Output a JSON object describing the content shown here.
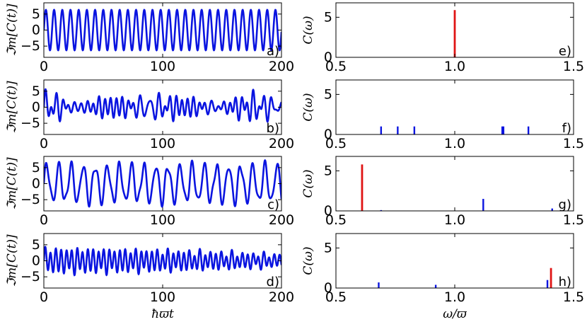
{
  "chart_data": [
    {
      "panel": "a)",
      "type": "line",
      "ylabel": "ℑm[C(t)]",
      "xlabel": "",
      "xlim": [
        0,
        200
      ],
      "ylim": [
        -8.5,
        8.5
      ],
      "xticks": [
        0,
        100,
        200
      ],
      "yticks": [
        -5,
        0,
        5
      ],
      "color": "#0a14e0",
      "components": [
        {
          "amp": 6.3,
          "period": 6.9,
          "phase": 0
        }
      ]
    },
    {
      "panel": "b)",
      "type": "line",
      "ylabel": "ℑm[C(t)]",
      "xlabel": "",
      "xlim": [
        0,
        200
      ],
      "ylim": [
        -8.5,
        8.5
      ],
      "xticks": [
        0,
        100,
        200
      ],
      "yticks": [
        -5,
        0,
        5
      ],
      "color": "#0a14e0",
      "components": [
        {
          "amp": 1.0,
          "period": 8.7,
          "phase": 0
        },
        {
          "amp": 1.0,
          "period": 7.9,
          "phase": 0
        },
        {
          "amp": 1.0,
          "period": 7.3,
          "phase": 0
        },
        {
          "amp": 1.0,
          "period": 5.01,
          "phase": 0
        },
        {
          "amp": 1.0,
          "period": 4.99,
          "phase": 0
        },
        {
          "amp": 1.0,
          "period": 4.6,
          "phase": 0
        }
      ]
    },
    {
      "panel": "c)",
      "type": "line",
      "ylabel": "ℑm[C(t)]",
      "xlabel": "",
      "xlim": [
        0,
        200
      ],
      "ylim": [
        -8.5,
        8.5
      ],
      "xticks": [
        0,
        100,
        200
      ],
      "yticks": [
        -5,
        0,
        5
      ],
      "color": "#0a14e0",
      "components": [
        {
          "amp": 5.6,
          "period": 10.2,
          "phase": 0
        },
        {
          "amp": 1.4,
          "period": 5.6,
          "phase": 0
        },
        {
          "amp": 0.3,
          "period": 4.4,
          "phase": 0
        }
      ]
    },
    {
      "panel": "d)",
      "type": "line",
      "ylabel": "ℑm[C(t)]",
      "xlabel": "ħϖt",
      "xlim": [
        0,
        200
      ],
      "ylim": [
        -8.5,
        8.5
      ],
      "xticks": [
        0,
        100,
        200
      ],
      "yticks": [
        -5,
        0,
        5
      ],
      "color": "#0a14e0",
      "components": [
        {
          "amp": 0.7,
          "period": 9.2,
          "phase": 0
        },
        {
          "amp": 0.5,
          "period": 6.8,
          "phase": 0
        },
        {
          "amp": 1.0,
          "period": 4.52,
          "phase": 0
        },
        {
          "amp": 2.4,
          "period": 4.48,
          "phase": 0
        }
      ]
    },
    {
      "panel": "e)",
      "type": "bar",
      "ylabel": "C(ω)",
      "xlabel": "",
      "xlim": [
        0.5,
        1.5
      ],
      "ylim": [
        0,
        6.8
      ],
      "xticks": [
        "0.5",
        "1.0",
        "1.5"
      ],
      "yticks": [
        "0",
        "5"
      ],
      "lines": [
        {
          "x": 1.0,
          "y": 5.9,
          "color": "#e01414"
        }
      ]
    },
    {
      "panel": "f)",
      "type": "bar",
      "ylabel": "C(ω)",
      "xlabel": "",
      "xlim": [
        0.5,
        1.5
      ],
      "ylim": [
        0,
        6.8
      ],
      "xticks": [
        "0.5",
        "1.0",
        "1.5"
      ],
      "yticks": [
        "0",
        "5"
      ],
      "lines": [
        {
          "x": 0.69,
          "y": 1.0,
          "color": "#0a14e0"
        },
        {
          "x": 0.76,
          "y": 1.0,
          "color": "#0a14e0"
        },
        {
          "x": 0.83,
          "y": 1.0,
          "color": "#0a14e0"
        },
        {
          "x": 1.2,
          "y": 1.0,
          "color": "#0a14e0"
        },
        {
          "x": 1.205,
          "y": 1.0,
          "color": "#0a14e0"
        },
        {
          "x": 1.31,
          "y": 1.0,
          "color": "#0a14e0"
        }
      ]
    },
    {
      "panel": "g)",
      "type": "bar",
      "ylabel": "C(ω)",
      "xlabel": "",
      "xlim": [
        0.5,
        1.5
      ],
      "ylim": [
        0,
        6.8
      ],
      "xticks": [
        "0.5",
        "1.0",
        "1.5"
      ],
      "yticks": [
        "0",
        "5"
      ],
      "lines": [
        {
          "x": 0.61,
          "y": 5.8,
          "color": "#e01414"
        },
        {
          "x": 0.69,
          "y": 0.1,
          "color": "#0a14e0"
        },
        {
          "x": 1.12,
          "y": 1.5,
          "color": "#0a14e0"
        },
        {
          "x": 1.41,
          "y": 0.3,
          "color": "#0a14e0"
        }
      ]
    },
    {
      "panel": "h)",
      "type": "bar",
      "ylabel": "C(ω)",
      "xlabel": "ω/ϖ",
      "xlim": [
        0.5,
        1.5
      ],
      "ylim": [
        0,
        6.8
      ],
      "xticks": [
        "0.5",
        "1.0",
        "1.5"
      ],
      "yticks": [
        "0",
        "5"
      ],
      "lines": [
        {
          "x": 0.68,
          "y": 0.7,
          "color": "#0a14e0"
        },
        {
          "x": 0.92,
          "y": 0.4,
          "color": "#0a14e0"
        },
        {
          "x": 1.39,
          "y": 1.0,
          "color": "#0a14e0"
        },
        {
          "x": 1.405,
          "y": 2.5,
          "color": "#e01414"
        }
      ]
    }
  ]
}
